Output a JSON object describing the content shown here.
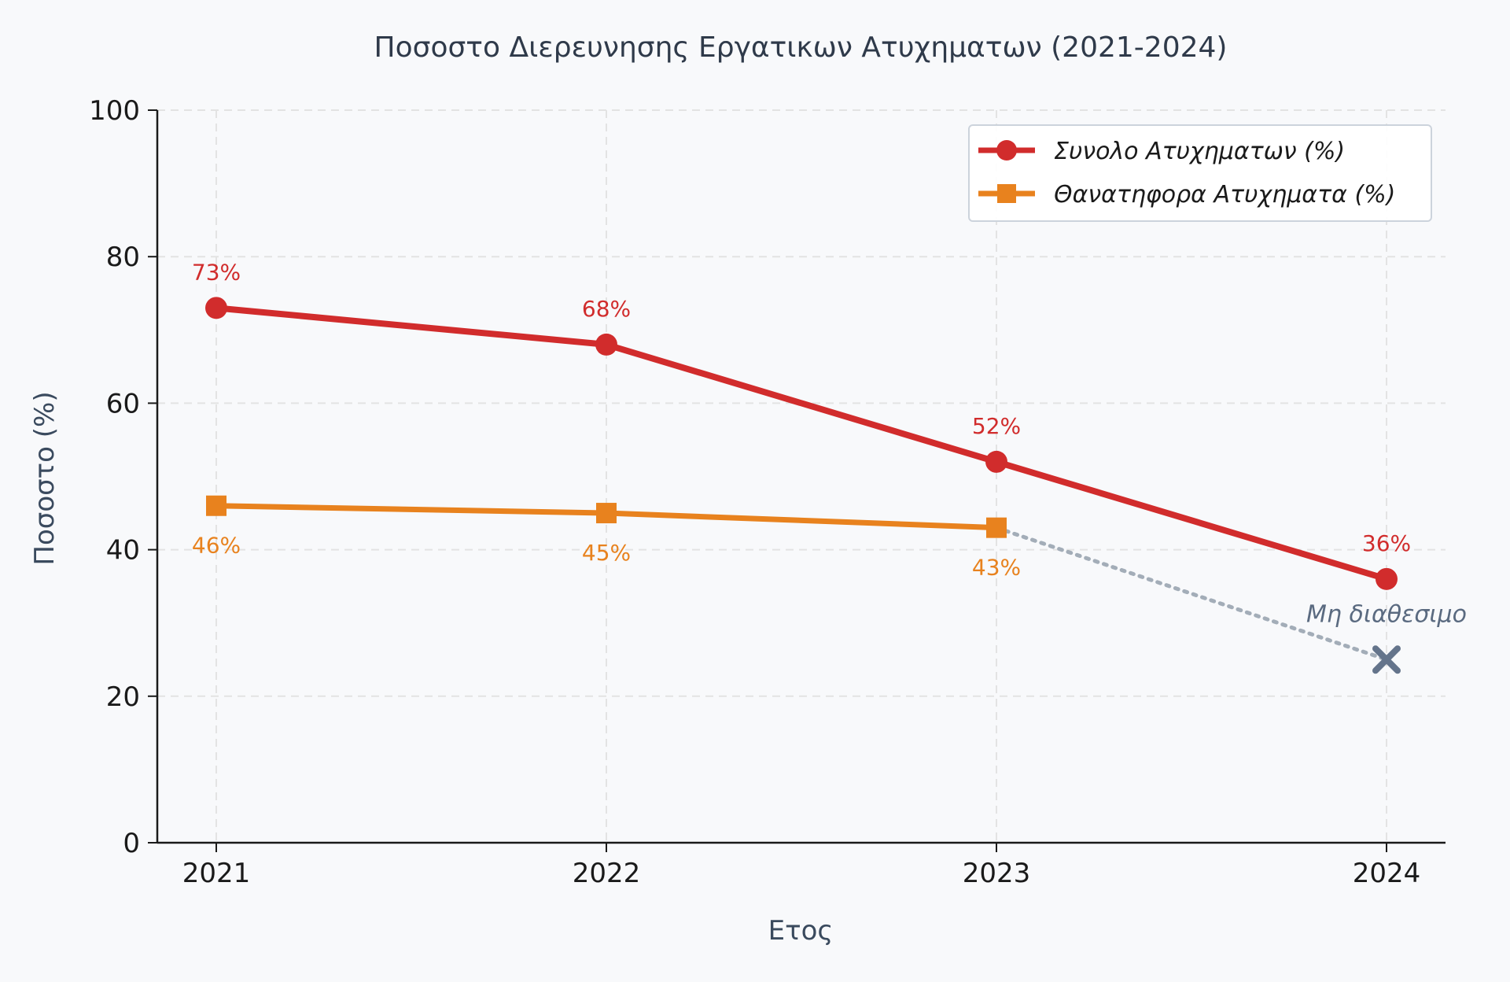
{
  "chart_data": {
    "type": "line",
    "title": "Ποσοστο Διερευνησης Εργατικων Ατυχηματων (2021-2024)",
    "xlabel": "Ετος",
    "ylabel": "Ποσοστο (%)",
    "categories": [
      "2021",
      "2022",
      "2023",
      "2024"
    ],
    "ylim": [
      0,
      100
    ],
    "yticks": [
      0,
      20,
      40,
      60,
      80,
      100
    ],
    "grid": true,
    "legend_position": "top-right",
    "series": [
      {
        "name": "Συνολο Ατυχηματων (%)",
        "values": [
          73,
          68,
          52,
          36
        ],
        "labels": [
          "73%",
          "68%",
          "52%",
          "36%"
        ],
        "color": "#d12c2c",
        "marker": "circle"
      },
      {
        "name": "Θανατηφορα Ατυχηματα (%)",
        "values": [
          46,
          45,
          43,
          null
        ],
        "labels": [
          "46%",
          "45%",
          "43%",
          ""
        ],
        "color": "#e8821e",
        "marker": "square"
      }
    ],
    "missing_point": {
      "category": "2024",
      "value": 25,
      "label": "Μη διαθεσιμο",
      "color": "#64748b",
      "marker": "x"
    }
  }
}
